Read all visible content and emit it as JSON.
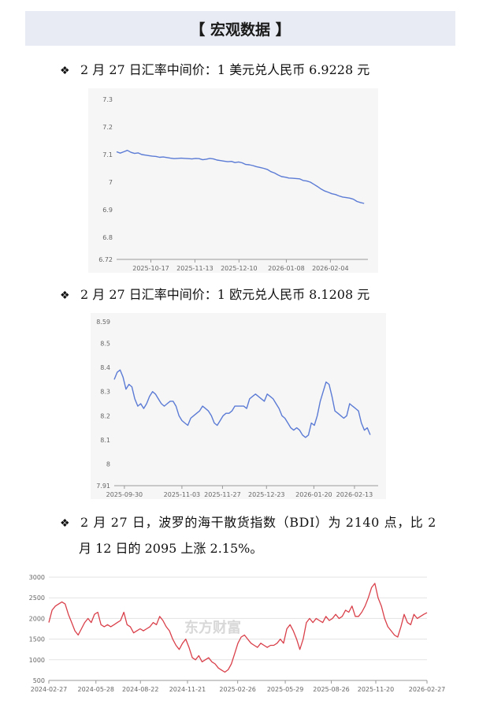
{
  "header": {
    "title": "【 宏观数据 】"
  },
  "bullets": [
    {
      "text": "2 月 27 日汇率中间价：1 美元兑人民币 6.9228 元"
    },
    {
      "text": "2 月 27 日汇率中间价：1 欧元兑人民币 8.1208 元"
    },
    {
      "text": "2 月 27 日，波罗的海干散货指数（BDI）为 2140 点，比 2",
      "continuation": "月 12 日的 2095 上涨 2.15%。"
    }
  ],
  "icons": {
    "bullet": "diamond-four-icon"
  },
  "watermark": "东方财富",
  "chart_data": [
    {
      "type": "line",
      "color": "#5b7bd5",
      "grid": false,
      "ylim": [
        6.72,
        7.3
      ],
      "yticks": [
        "7.3",
        "7.2",
        "7.1",
        "7",
        "6.9",
        "6.8",
        "6.72"
      ],
      "ytick_values": [
        7.3,
        7.2,
        7.1,
        7.0,
        6.9,
        6.8,
        6.72
      ],
      "xticks": [
        "2025-10-17",
        "2025-11-13",
        "2025-12-10",
        "2026-01-08",
        "2026-02-04"
      ],
      "x_start": "2025-09-26",
      "x_end": "2026-02-27",
      "xtick_dates": [
        "2025-10-17",
        "2025-11-13",
        "2025-12-10",
        "2026-01-08",
        "2026-02-04"
      ],
      "series": [
        {
          "values": [
            7.11,
            7.105,
            7.11,
            7.115,
            7.108,
            7.104,
            7.106,
            7.1,
            7.098,
            7.096,
            7.094,
            7.093,
            7.09,
            7.091,
            7.089,
            7.087,
            7.085,
            7.086,
            7.087,
            7.086,
            7.085,
            7.084,
            7.086,
            7.085,
            7.081,
            7.083,
            7.086,
            7.084,
            7.08,
            7.078,
            7.076,
            7.074,
            7.075,
            7.071,
            7.073,
            7.07,
            7.064,
            7.063,
            7.06,
            7.056,
            7.053,
            7.05,
            7.046,
            7.038,
            7.033,
            7.026,
            7.02,
            7.018,
            7.015,
            7.014,
            7.013,
            7.012,
            7.006,
            7.004,
            7.0,
            6.992,
            6.984,
            6.975,
            6.968,
            6.963,
            6.958,
            6.955,
            6.95,
            6.946,
            6.944,
            6.942,
            6.938,
            6.93,
            6.926,
            6.9228
          ]
        }
      ]
    },
    {
      "type": "line",
      "color": "#5b7bd5",
      "grid": false,
      "ylim": [
        7.91,
        8.59
      ],
      "yticks": [
        "8.59",
        "8.5",
        "8.4",
        "8.3",
        "8.2",
        "8.1",
        "8",
        "7.91"
      ],
      "ytick_values": [
        8.59,
        8.5,
        8.4,
        8.3,
        8.2,
        8.1,
        8.0,
        7.91
      ],
      "xticks": [
        "2025-09-30",
        "2025-11-03",
        "2025-11-27",
        "2025-12-23",
        "2026-01-20",
        "2026-02-13"
      ],
      "x_start": "2025-09-24",
      "x_end": "2026-02-27",
      "xtick_dates": [
        "2025-09-30",
        "2025-11-03",
        "2025-11-27",
        "2025-12-23",
        "2026-01-20",
        "2026-02-13"
      ],
      "series": [
        {
          "values": [
            8.35,
            8.38,
            8.39,
            8.36,
            8.31,
            8.33,
            8.32,
            8.27,
            8.24,
            8.25,
            8.23,
            8.25,
            8.28,
            8.3,
            8.29,
            8.27,
            8.25,
            8.24,
            8.25,
            8.26,
            8.26,
            8.24,
            8.2,
            8.18,
            8.17,
            8.16,
            8.19,
            8.2,
            8.21,
            8.22,
            8.24,
            8.23,
            8.22,
            8.2,
            8.17,
            8.16,
            8.18,
            8.2,
            8.21,
            8.21,
            8.22,
            8.24,
            8.24,
            8.24,
            8.24,
            8.23,
            8.27,
            8.28,
            8.29,
            8.28,
            8.27,
            8.26,
            8.29,
            8.28,
            8.27,
            8.25,
            8.23,
            8.2,
            8.19,
            8.17,
            8.15,
            8.14,
            8.15,
            8.14,
            8.12,
            8.11,
            8.12,
            8.17,
            8.16,
            8.2,
            8.26,
            8.3,
            8.34,
            8.33,
            8.28,
            8.22,
            8.21,
            8.2,
            8.19,
            8.2,
            8.25,
            8.24,
            8.23,
            8.22,
            8.17,
            8.14,
            8.15,
            8.1208
          ]
        }
      ]
    },
    {
      "type": "line",
      "color": "#d9404a",
      "grid": true,
      "ylim": [
        500,
        3000
      ],
      "yticks": [
        "3000",
        "2500",
        "2000",
        "1500",
        "1000",
        "500"
      ],
      "ytick_values": [
        3000,
        2500,
        2000,
        1500,
        1000,
        500
      ],
      "xticks": [
        "2024-02-27",
        "2024-05-28",
        "2024-08-22",
        "2024-11-21",
        "2025-02-26",
        "2025-05-29",
        "2025-08-26",
        "2025-11-20",
        "2026-02-27"
      ],
      "x_start": "2024-02-27",
      "x_end": "2026-02-27",
      "xtick_dates": [
        "2024-02-27",
        "2024-05-28",
        "2024-08-22",
        "2024-11-21",
        "2025-02-26",
        "2025-05-29",
        "2025-08-26",
        "2025-11-20",
        "2026-02-27"
      ],
      "series": [
        {
          "values": [
            1900,
            2200,
            2300,
            2350,
            2400,
            2350,
            2100,
            1900,
            1700,
            1600,
            1750,
            1900,
            2000,
            1900,
            2100,
            2150,
            1850,
            1800,
            1850,
            1800,
            1850,
            1900,
            1950,
            2150,
            1850,
            1800,
            1650,
            1700,
            1750,
            1700,
            1750,
            1800,
            1900,
            1850,
            2050,
            1950,
            1800,
            1700,
            1500,
            1350,
            1250,
            1400,
            1500,
            1300,
            1050,
            1000,
            1100,
            950,
            1000,
            1050,
            950,
            900,
            800,
            750,
            700,
            760,
            900,
            1150,
            1400,
            1550,
            1600,
            1500,
            1400,
            1350,
            1300,
            1400,
            1350,
            1300,
            1350,
            1350,
            1400,
            1500,
            1400,
            1750,
            1850,
            1700,
            1500,
            1250,
            1500,
            1900,
            2000,
            1900,
            2000,
            1950,
            1900,
            2050,
            1950,
            2000,
            2100,
            2000,
            2050,
            2200,
            2150,
            2300,
            2050,
            2050,
            2150,
            2300,
            2500,
            2750,
            2850,
            2500,
            2300,
            2000,
            1800,
            1700,
            1600,
            1550,
            1800,
            2100,
            1900,
            1850,
            2100,
            2000,
            2050,
            2100,
            2140
          ]
        }
      ]
    }
  ]
}
